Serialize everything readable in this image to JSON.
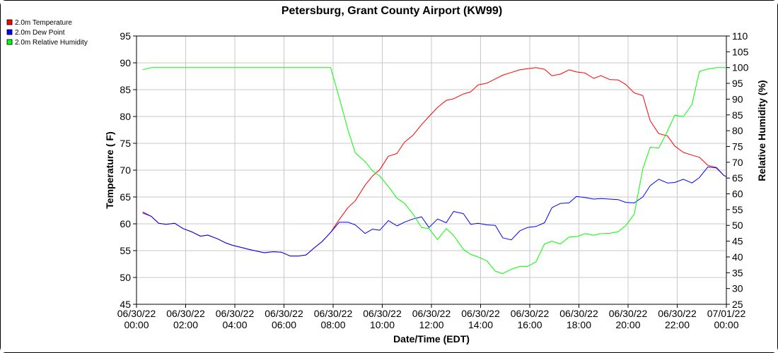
{
  "chart_data": {
    "type": "line",
    "title": "Petersburg, Grant County Airport (KW99)",
    "xlabel": "Date/Time (EDT)",
    "ylabel_left": "Temperature ( F)",
    "ylabel_right": "Relative Humidity (%)",
    "ylim_left": [
      45,
      95
    ],
    "yticks_left": [
      45,
      50,
      55,
      60,
      65,
      70,
      75,
      80,
      85,
      90,
      95
    ],
    "ylim_right": [
      25,
      110
    ],
    "yticks_right": [
      25,
      30,
      35,
      40,
      45,
      50,
      55,
      60,
      65,
      70,
      75,
      80,
      85,
      90,
      95,
      100,
      105,
      110
    ],
    "xlim_hours": [
      0,
      24
    ],
    "x_ticks": [
      {
        "hour": 0,
        "date": "06/30/22",
        "time": "00:00"
      },
      {
        "hour": 2,
        "date": "06/30/22",
        "time": "02:00"
      },
      {
        "hour": 4,
        "date": "06/30/22",
        "time": "04:00"
      },
      {
        "hour": 6,
        "date": "06/30/22",
        "time": "06:00"
      },
      {
        "hour": 8,
        "date": "06/30/22",
        "time": "08:00"
      },
      {
        "hour": 10,
        "date": "06/30/22",
        "time": "10:00"
      },
      {
        "hour": 12,
        "date": "06/30/22",
        "time": "12:00"
      },
      {
        "hour": 14,
        "date": "06/30/22",
        "time": "14:00"
      },
      {
        "hour": 16,
        "date": "06/30/22",
        "time": "16:00"
      },
      {
        "hour": 18,
        "date": "06/30/22",
        "time": "18:00"
      },
      {
        "hour": 20,
        "date": "06/30/22",
        "time": "20:00"
      },
      {
        "hour": 22,
        "date": "06/30/22",
        "time": "22:00"
      },
      {
        "hour": 24,
        "date": "07/01/22",
        "time": "00:00"
      }
    ],
    "grid": true,
    "legend_position": "top-left",
    "series": [
      {
        "name": "2.0m Temperature",
        "color": "#ff0000",
        "axis": "left",
        "x": [
          0.25,
          0.6,
          0.9,
          1.2,
          1.55,
          1.9,
          2.25,
          2.6,
          2.9,
          3.3,
          3.6,
          3.9,
          4.25,
          4.6,
          4.9,
          5.2,
          5.55,
          5.9,
          6.25,
          6.6,
          6.9,
          7.2,
          7.55,
          7.9,
          8.25,
          8.6,
          8.9,
          9.3,
          9.6,
          9.9,
          10.25,
          10.6,
          10.9,
          11.25,
          11.6,
          11.9,
          12.25,
          12.6,
          12.9,
          13.3,
          13.6,
          13.9,
          14.25,
          14.6,
          14.9,
          15.25,
          15.6,
          15.9,
          16.25,
          16.6,
          16.9,
          17.25,
          17.6,
          17.9,
          18.25,
          18.6,
          18.9,
          19.25,
          19.6,
          19.9,
          20.25,
          20.6,
          20.9,
          21.25,
          21.6,
          21.9,
          22.25,
          22.6,
          22.9,
          23.25,
          23.6,
          23.9
        ],
        "values": [
          62.0,
          61.4,
          60.1,
          59.9,
          60.1,
          59.1,
          58.5,
          57.7,
          57.9,
          57.2,
          56.5,
          56.0,
          55.6,
          55.2,
          54.9,
          54.6,
          54.8,
          54.7,
          54.0,
          54.0,
          54.2,
          55.4,
          56.7,
          58.4,
          60.8,
          63.0,
          64.3,
          67.2,
          68.9,
          70.1,
          72.6,
          73.1,
          75.2,
          76.5,
          78.5,
          80.0,
          81.7,
          83.0,
          83.3,
          84.2,
          84.6,
          85.9,
          86.2,
          87.0,
          87.7,
          88.2,
          88.7,
          88.9,
          89.1,
          88.8,
          87.6,
          87.9,
          88.7,
          88.3,
          88.1,
          87.1,
          87.6,
          86.9,
          86.8,
          86.0,
          84.4,
          83.9,
          79.2,
          76.8,
          76.4,
          74.5,
          73.3,
          72.8,
          72.4,
          70.9,
          70.5,
          69.0
        ],
        "end": [
          24.0,
          68.8
        ]
      },
      {
        "name": "2.0m Dew Point",
        "color": "#0000ff",
        "axis": "left",
        "x": [
          0.25,
          0.6,
          0.9,
          1.2,
          1.55,
          1.9,
          2.25,
          2.6,
          2.9,
          3.3,
          3.6,
          3.9,
          4.25,
          4.6,
          4.9,
          5.2,
          5.55,
          5.9,
          6.25,
          6.6,
          6.9,
          7.2,
          7.55,
          7.9,
          8.25,
          8.6,
          8.9,
          9.3,
          9.6,
          9.9,
          10.25,
          10.6,
          10.9,
          11.25,
          11.6,
          11.9,
          12.25,
          12.6,
          12.9,
          13.3,
          13.6,
          13.9,
          14.25,
          14.6,
          14.9,
          15.25,
          15.6,
          15.9,
          16.25,
          16.6,
          16.9,
          17.25,
          17.6,
          17.9,
          18.25,
          18.6,
          18.9,
          19.25,
          19.6,
          19.9,
          20.25,
          20.6,
          20.9,
          21.25,
          21.6,
          21.9,
          22.25,
          22.6,
          22.9,
          23.25,
          23.6,
          23.9
        ],
        "values": [
          62.2,
          61.4,
          60.1,
          59.9,
          60.1,
          59.1,
          58.5,
          57.7,
          57.9,
          57.2,
          56.5,
          56.0,
          55.6,
          55.2,
          54.9,
          54.6,
          54.8,
          54.7,
          54.0,
          54.0,
          54.2,
          55.4,
          56.7,
          58.4,
          60.3,
          60.3,
          59.8,
          58.2,
          59.0,
          58.8,
          60.6,
          59.6,
          60.3,
          60.9,
          61.3,
          59.3,
          60.9,
          60.2,
          62.3,
          61.9,
          59.9,
          60.1,
          59.8,
          59.7,
          57.4,
          57.0,
          58.7,
          59.3,
          59.5,
          60.2,
          63.0,
          63.8,
          63.9,
          65.1,
          64.9,
          64.6,
          64.7,
          64.6,
          64.5,
          64.0,
          63.9,
          65.0,
          67.1,
          68.3,
          67.6,
          67.7,
          68.3,
          67.6,
          68.6,
          70.6,
          70.4,
          69.0
        ],
        "end": [
          24.0,
          68.8
        ]
      },
      {
        "name": "2.0m Relative Humidity",
        "color": "#00ff00",
        "axis": "right",
        "x": [
          0.25,
          0.6,
          0.9,
          1.2,
          1.55,
          1.9,
          2.25,
          2.6,
          2.9,
          3.3,
          3.6,
          3.9,
          4.25,
          4.6,
          4.9,
          5.2,
          5.55,
          5.9,
          6.25,
          6.6,
          6.9,
          7.2,
          7.55,
          7.9,
          8.25,
          8.6,
          8.9,
          9.3,
          9.6,
          9.9,
          10.25,
          10.6,
          10.9,
          11.25,
          11.6,
          11.9,
          12.25,
          12.6,
          12.9,
          13.3,
          13.6,
          13.9,
          14.25,
          14.6,
          14.9,
          15.25,
          15.6,
          15.9,
          16.25,
          16.6,
          16.9,
          17.25,
          17.6,
          17.9,
          18.25,
          18.6,
          18.9,
          19.25,
          19.6,
          19.9,
          20.25,
          20.6,
          20.9,
          21.25,
          21.6,
          21.9,
          22.25,
          22.6,
          22.9,
          23.25,
          23.6,
          23.9
        ],
        "values": [
          99.3,
          100,
          100,
          100,
          100,
          100,
          100,
          100,
          100,
          100,
          100,
          100,
          100,
          100,
          100,
          100,
          100,
          100,
          100,
          100,
          100,
          100,
          100,
          100,
          90.4,
          80.3,
          73.0,
          70.2,
          67.3,
          65.6,
          62.3,
          58.6,
          57.0,
          53.6,
          49.3,
          49.0,
          45.5,
          49.0,
          46.8,
          42.4,
          40.8,
          40.0,
          38.8,
          35.5,
          34.7,
          36.1,
          37.0,
          37.0,
          38.4,
          44.1,
          45.0,
          44.1,
          46.3,
          46.4,
          47.4,
          46.9,
          47.4,
          47.5,
          48.0,
          49.9,
          53.5,
          68.0,
          74.8,
          74.5,
          79.8,
          84.9,
          84.5,
          88.3,
          98.8,
          99.5,
          100,
          100
        ],
        "end": [
          24.0,
          100
        ]
      }
    ]
  }
}
